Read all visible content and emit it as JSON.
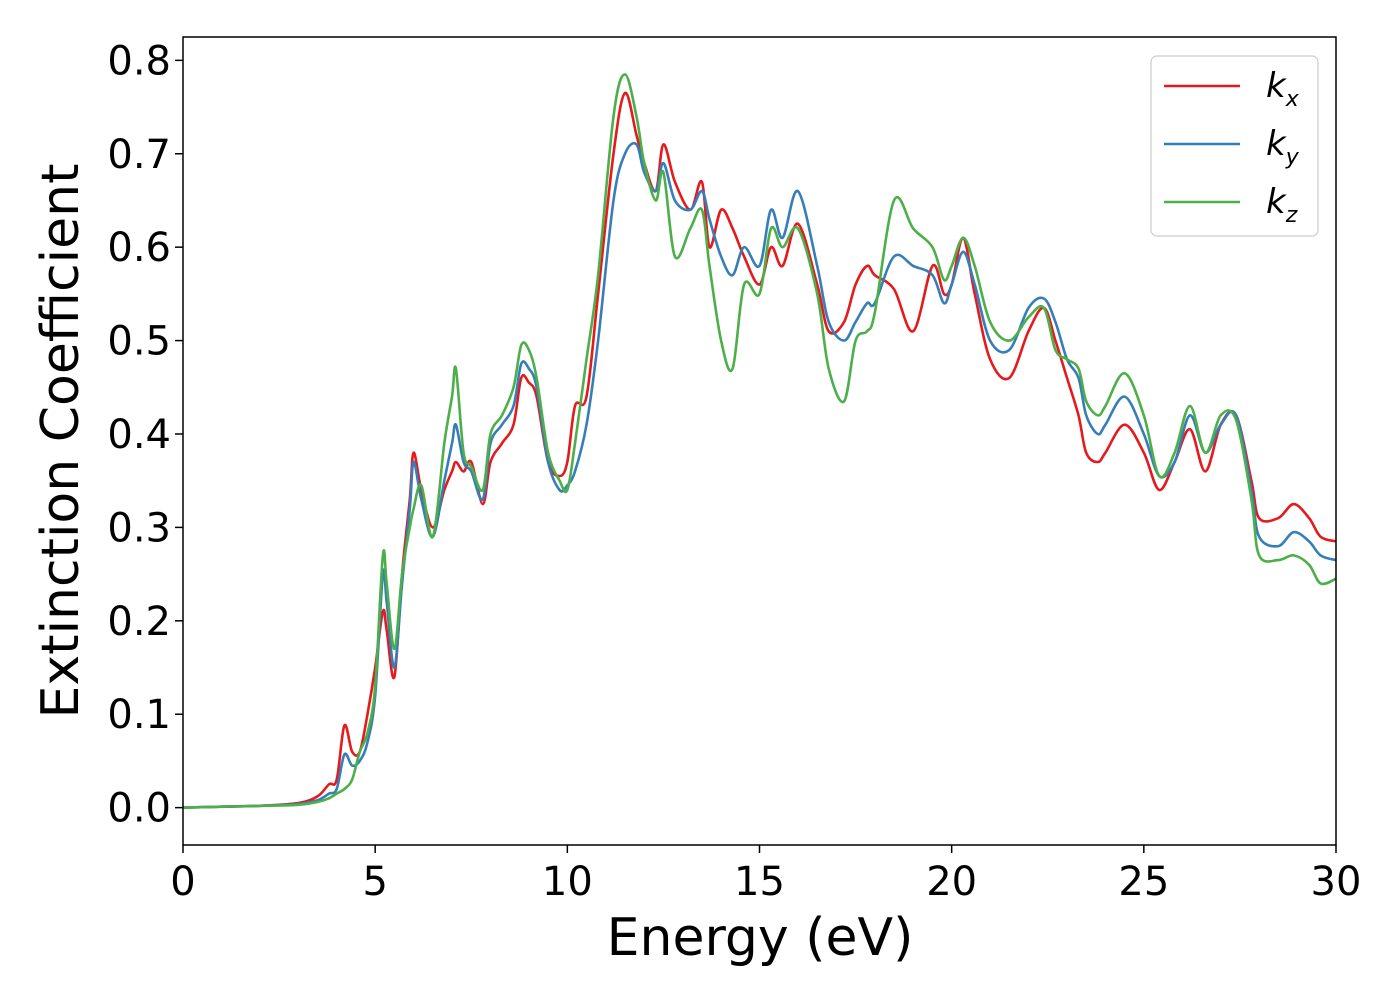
{
  "chart_data": {
    "type": "line",
    "xlabel": "Energy (eV)",
    "ylabel": "Extinction Coefficient",
    "xlim": [
      0,
      30
    ],
    "ylim": [
      -0.04,
      0.825
    ],
    "xticks": [
      0,
      5,
      10,
      15,
      20,
      25,
      30
    ],
    "xtick_labels": [
      "0",
      "5",
      "10",
      "15",
      "20",
      "25",
      "30"
    ],
    "yticks": [
      0.0,
      0.1,
      0.2,
      0.3,
      0.4,
      0.5,
      0.6,
      0.7,
      0.8
    ],
    "ytick_labels": [
      "0.0",
      "0.1",
      "0.2",
      "0.3",
      "0.4",
      "0.5",
      "0.6",
      "0.7",
      "0.8"
    ],
    "grid": false,
    "legend_position": "top-right",
    "series": [
      {
        "name": "k",
        "subscript": "x",
        "color": "#e41a1c",
        "points": [
          [
            0,
            0
          ],
          [
            1,
            0.001
          ],
          [
            2,
            0.002
          ],
          [
            3,
            0.005
          ],
          [
            3.5,
            0.012
          ],
          [
            3.8,
            0.025
          ],
          [
            4.0,
            0.03
          ],
          [
            4.2,
            0.088
          ],
          [
            4.4,
            0.06
          ],
          [
            4.6,
            0.06
          ],
          [
            4.8,
            0.1
          ],
          [
            5.0,
            0.15
          ],
          [
            5.2,
            0.21
          ],
          [
            5.3,
            0.19
          ],
          [
            5.5,
            0.14
          ],
          [
            5.7,
            0.25
          ],
          [
            5.9,
            0.33
          ],
          [
            6.0,
            0.38
          ],
          [
            6.2,
            0.34
          ],
          [
            6.5,
            0.3
          ],
          [
            6.8,
            0.34
          ],
          [
            7.0,
            0.36
          ],
          [
            7.1,
            0.37
          ],
          [
            7.3,
            0.36
          ],
          [
            7.5,
            0.37
          ],
          [
            7.8,
            0.325
          ],
          [
            8.0,
            0.37
          ],
          [
            8.3,
            0.39
          ],
          [
            8.6,
            0.41
          ],
          [
            8.8,
            0.46
          ],
          [
            9.0,
            0.455
          ],
          [
            9.2,
            0.44
          ],
          [
            9.5,
            0.37
          ],
          [
            9.8,
            0.355
          ],
          [
            10.0,
            0.37
          ],
          [
            10.2,
            0.43
          ],
          [
            10.5,
            0.44
          ],
          [
            10.8,
            0.55
          ],
          [
            11.2,
            0.7
          ],
          [
            11.5,
            0.765
          ],
          [
            11.8,
            0.72
          ],
          [
            12.0,
            0.69
          ],
          [
            12.3,
            0.66
          ],
          [
            12.5,
            0.71
          ],
          [
            12.8,
            0.67
          ],
          [
            13.2,
            0.64
          ],
          [
            13.5,
            0.67
          ],
          [
            13.7,
            0.6
          ],
          [
            14.0,
            0.64
          ],
          [
            14.3,
            0.62
          ],
          [
            14.6,
            0.59
          ],
          [
            15.0,
            0.56
          ],
          [
            15.3,
            0.6
          ],
          [
            15.6,
            0.58
          ],
          [
            16.0,
            0.625
          ],
          [
            16.5,
            0.56
          ],
          [
            16.8,
            0.51
          ],
          [
            17.2,
            0.52
          ],
          [
            17.5,
            0.56
          ],
          [
            17.8,
            0.58
          ],
          [
            18.0,
            0.57
          ],
          [
            18.5,
            0.555
          ],
          [
            19.0,
            0.51
          ],
          [
            19.5,
            0.58
          ],
          [
            19.8,
            0.55
          ],
          [
            20.0,
            0.56
          ],
          [
            20.3,
            0.61
          ],
          [
            20.6,
            0.55
          ],
          [
            21.0,
            0.48
          ],
          [
            21.5,
            0.46
          ],
          [
            22.0,
            0.51
          ],
          [
            22.4,
            0.535
          ],
          [
            22.7,
            0.5
          ],
          [
            23.0,
            0.46
          ],
          [
            23.3,
            0.42
          ],
          [
            23.5,
            0.38
          ],
          [
            23.8,
            0.37
          ],
          [
            24.0,
            0.38
          ],
          [
            24.5,
            0.41
          ],
          [
            25.0,
            0.38
          ],
          [
            25.4,
            0.34
          ],
          [
            25.8,
            0.37
          ],
          [
            26.2,
            0.405
          ],
          [
            26.6,
            0.36
          ],
          [
            27.0,
            0.41
          ],
          [
            27.4,
            0.42
          ],
          [
            27.8,
            0.35
          ],
          [
            28.0,
            0.31
          ],
          [
            28.5,
            0.31
          ],
          [
            28.9,
            0.325
          ],
          [
            29.3,
            0.31
          ],
          [
            29.6,
            0.29
          ],
          [
            30.0,
            0.285
          ]
        ]
      },
      {
        "name": "k",
        "subscript": "y",
        "color": "#377eb8",
        "points": [
          [
            0,
            0
          ],
          [
            1,
            0.001
          ],
          [
            2,
            0.002
          ],
          [
            3,
            0.004
          ],
          [
            3.5,
            0.008
          ],
          [
            3.8,
            0.015
          ],
          [
            4.0,
            0.02
          ],
          [
            4.2,
            0.057
          ],
          [
            4.4,
            0.045
          ],
          [
            4.6,
            0.05
          ],
          [
            4.8,
            0.07
          ],
          [
            5.0,
            0.12
          ],
          [
            5.2,
            0.25
          ],
          [
            5.3,
            0.22
          ],
          [
            5.5,
            0.15
          ],
          [
            5.7,
            0.24
          ],
          [
            5.9,
            0.32
          ],
          [
            6.0,
            0.37
          ],
          [
            6.2,
            0.33
          ],
          [
            6.5,
            0.29
          ],
          [
            6.8,
            0.35
          ],
          [
            7.0,
            0.39
          ],
          [
            7.1,
            0.41
          ],
          [
            7.3,
            0.37
          ],
          [
            7.5,
            0.36
          ],
          [
            7.8,
            0.33
          ],
          [
            8.0,
            0.39
          ],
          [
            8.3,
            0.41
          ],
          [
            8.6,
            0.43
          ],
          [
            8.8,
            0.475
          ],
          [
            9.0,
            0.47
          ],
          [
            9.2,
            0.45
          ],
          [
            9.5,
            0.37
          ],
          [
            9.8,
            0.34
          ],
          [
            10.0,
            0.345
          ],
          [
            10.2,
            0.36
          ],
          [
            10.5,
            0.41
          ],
          [
            10.8,
            0.5
          ],
          [
            11.2,
            0.65
          ],
          [
            11.5,
            0.7
          ],
          [
            11.8,
            0.71
          ],
          [
            12.0,
            0.68
          ],
          [
            12.3,
            0.66
          ],
          [
            12.5,
            0.69
          ],
          [
            12.8,
            0.65
          ],
          [
            13.2,
            0.64
          ],
          [
            13.5,
            0.66
          ],
          [
            13.7,
            0.63
          ],
          [
            14.0,
            0.59
          ],
          [
            14.3,
            0.57
          ],
          [
            14.6,
            0.6
          ],
          [
            15.0,
            0.58
          ],
          [
            15.3,
            0.64
          ],
          [
            15.6,
            0.61
          ],
          [
            16.0,
            0.66
          ],
          [
            16.5,
            0.58
          ],
          [
            16.8,
            0.52
          ],
          [
            17.2,
            0.5
          ],
          [
            17.5,
            0.52
          ],
          [
            17.8,
            0.54
          ],
          [
            18.0,
            0.54
          ],
          [
            18.5,
            0.59
          ],
          [
            19.0,
            0.58
          ],
          [
            19.5,
            0.57
          ],
          [
            19.8,
            0.54
          ],
          [
            20.0,
            0.56
          ],
          [
            20.3,
            0.595
          ],
          [
            20.6,
            0.56
          ],
          [
            21.0,
            0.5
          ],
          [
            21.5,
            0.49
          ],
          [
            22.0,
            0.535
          ],
          [
            22.4,
            0.545
          ],
          [
            22.7,
            0.52
          ],
          [
            23.0,
            0.48
          ],
          [
            23.3,
            0.46
          ],
          [
            23.5,
            0.42
          ],
          [
            23.8,
            0.4
          ],
          [
            24.0,
            0.41
          ],
          [
            24.5,
            0.44
          ],
          [
            25.0,
            0.4
          ],
          [
            25.4,
            0.355
          ],
          [
            25.8,
            0.37
          ],
          [
            26.2,
            0.42
          ],
          [
            26.6,
            0.38
          ],
          [
            27.0,
            0.41
          ],
          [
            27.4,
            0.42
          ],
          [
            27.8,
            0.34
          ],
          [
            28.0,
            0.29
          ],
          [
            28.5,
            0.28
          ],
          [
            28.9,
            0.295
          ],
          [
            29.3,
            0.285
          ],
          [
            29.6,
            0.27
          ],
          [
            30.0,
            0.265
          ]
        ]
      },
      {
        "name": "k",
        "subscript": "z",
        "color": "#4daf4a",
        "points": [
          [
            0,
            0
          ],
          [
            1,
            0.001
          ],
          [
            2,
            0.002
          ],
          [
            3,
            0.003
          ],
          [
            3.5,
            0.006
          ],
          [
            3.8,
            0.01
          ],
          [
            4.0,
            0.015
          ],
          [
            4.2,
            0.02
          ],
          [
            4.4,
            0.03
          ],
          [
            4.6,
            0.06
          ],
          [
            4.8,
            0.08
          ],
          [
            5.0,
            0.13
          ],
          [
            5.2,
            0.27
          ],
          [
            5.3,
            0.24
          ],
          [
            5.5,
            0.17
          ],
          [
            5.7,
            0.25
          ],
          [
            5.9,
            0.3
          ],
          [
            6.0,
            0.32
          ],
          [
            6.2,
            0.345
          ],
          [
            6.5,
            0.29
          ],
          [
            6.8,
            0.39
          ],
          [
            7.0,
            0.44
          ],
          [
            7.1,
            0.47
          ],
          [
            7.3,
            0.38
          ],
          [
            7.5,
            0.365
          ],
          [
            7.8,
            0.34
          ],
          [
            8.0,
            0.4
          ],
          [
            8.3,
            0.42
          ],
          [
            8.6,
            0.45
          ],
          [
            8.8,
            0.495
          ],
          [
            9.0,
            0.49
          ],
          [
            9.2,
            0.46
          ],
          [
            9.5,
            0.38
          ],
          [
            9.8,
            0.35
          ],
          [
            10.0,
            0.34
          ],
          [
            10.2,
            0.39
          ],
          [
            10.5,
            0.48
          ],
          [
            10.8,
            0.57
          ],
          [
            11.2,
            0.74
          ],
          [
            11.5,
            0.785
          ],
          [
            11.8,
            0.74
          ],
          [
            12.0,
            0.69
          ],
          [
            12.3,
            0.65
          ],
          [
            12.5,
            0.68
          ],
          [
            12.8,
            0.59
          ],
          [
            13.2,
            0.62
          ],
          [
            13.5,
            0.64
          ],
          [
            13.7,
            0.58
          ],
          [
            14.0,
            0.5
          ],
          [
            14.3,
            0.47
          ],
          [
            14.6,
            0.56
          ],
          [
            15.0,
            0.55
          ],
          [
            15.3,
            0.62
          ],
          [
            15.6,
            0.6
          ],
          [
            16.0,
            0.62
          ],
          [
            16.5,
            0.55
          ],
          [
            16.8,
            0.47
          ],
          [
            17.2,
            0.435
          ],
          [
            17.5,
            0.5
          ],
          [
            17.8,
            0.51
          ],
          [
            18.0,
            0.53
          ],
          [
            18.5,
            0.65
          ],
          [
            19.0,
            0.62
          ],
          [
            19.5,
            0.6
          ],
          [
            19.8,
            0.565
          ],
          [
            20.0,
            0.58
          ],
          [
            20.3,
            0.61
          ],
          [
            20.6,
            0.58
          ],
          [
            21.0,
            0.52
          ],
          [
            21.5,
            0.5
          ],
          [
            22.0,
            0.525
          ],
          [
            22.4,
            0.535
          ],
          [
            22.7,
            0.49
          ],
          [
            23.0,
            0.48
          ],
          [
            23.3,
            0.47
          ],
          [
            23.5,
            0.435
          ],
          [
            23.8,
            0.42
          ],
          [
            24.0,
            0.43
          ],
          [
            24.5,
            0.465
          ],
          [
            25.0,
            0.42
          ],
          [
            25.4,
            0.355
          ],
          [
            25.8,
            0.38
          ],
          [
            26.2,
            0.43
          ],
          [
            26.6,
            0.38
          ],
          [
            27.0,
            0.42
          ],
          [
            27.4,
            0.415
          ],
          [
            27.8,
            0.33
          ],
          [
            28.0,
            0.27
          ],
          [
            28.5,
            0.265
          ],
          [
            28.9,
            0.27
          ],
          [
            29.3,
            0.26
          ],
          [
            29.6,
            0.24
          ],
          [
            30.0,
            0.245
          ]
        ]
      }
    ]
  }
}
